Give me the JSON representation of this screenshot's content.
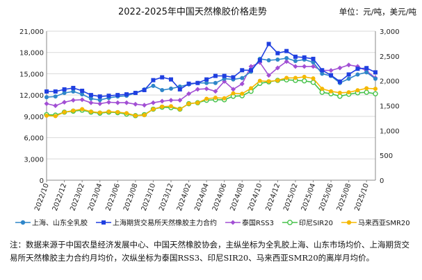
{
  "header": {
    "title": "2022-2025年中国天然橡胶价格走势",
    "unit": "单位：元/吨，美元/吨"
  },
  "legend": [
    {
      "label": "上海、山东全乳胶",
      "color": "#2e86c9",
      "marker": "circle"
    },
    {
      "label": "上海期货交易所天然橡胶主力合约",
      "color": "#1f3fe0",
      "marker": "square"
    },
    {
      "label": "泰国RSS3",
      "color": "#a24fd4",
      "marker": "diamond"
    },
    {
      "label": "印尼SIR20",
      "color": "#46c24a",
      "marker": "circle-open"
    },
    {
      "label": "马来西亚SMR20",
      "color": "#f5b800",
      "marker": "circle"
    }
  ],
  "note": "注：数据来源于中国农垦经济发展中心、中国天然橡胶协会，主纵坐标为全乳胶上海、山东市场均价、上海期货交易所天然橡胶主力合约月均价，次纵坐标为泰国RSS3、印尼SIR20、马来西亚SMR20的离岸月均价。",
  "chart_data": {
    "type": "line",
    "title": "2022-2025年中国天然橡胶价格走势",
    "x_tick_labels": [
      "2022/10",
      "2022/12",
      "2023/02",
      "2023/04",
      "2023/06",
      "2023/08",
      "2023/10",
      "2023/12",
      "2024/02",
      "2024/04",
      "2024/06",
      "2024/08",
      "2024/10",
      "2024/12",
      "2025/02",
      "2025/04",
      "2025/06",
      "2025/08",
      "2025/10"
    ],
    "y_left": {
      "ylim": [
        0,
        21000
      ],
      "ticks": [
        "0",
        "3,000",
        "6,000",
        "9,000",
        "12,000",
        "15,000",
        "18,000",
        "21,000"
      ],
      "ylabel": "元/吨"
    },
    "y_right": {
      "ylim": [
        0,
        3000
      ],
      "ticks": [
        "0",
        "500",
        "1,000",
        "1,500",
        "2,000",
        "2,500",
        "3,000"
      ],
      "ylabel": "美元/吨"
    },
    "series": [
      {
        "name": "上海、山东全乳胶",
        "axis": "left",
        "values": [
          11700,
          11800,
          12300,
          12500,
          12100,
          11500,
          11300,
          11600,
          11800,
          11900,
          12300,
          12800,
          13300,
          12700,
          12900,
          13200,
          13500,
          13700,
          13700,
          13700,
          14300,
          14200,
          14400,
          15300,
          17100,
          16900,
          17000,
          17200,
          16800,
          17000,
          16600,
          15000,
          14700,
          13700,
          14300,
          14900,
          15200,
          14300
        ]
      },
      {
        "name": "上海期货交易所天然橡胶主力合约",
        "axis": "left",
        "values": [
          12500,
          12500,
          12800,
          13000,
          12600,
          12000,
          11800,
          11900,
          12000,
          12100,
          12300,
          12700,
          14100,
          14500,
          14200,
          12800,
          13600,
          13700,
          14200,
          14700,
          14700,
          14500,
          15500,
          15500,
          16900,
          19200,
          17900,
          18200,
          17400,
          17300,
          17100,
          15500,
          14800,
          13900,
          14900,
          15700,
          15800,
          15200
        ]
      },
      {
        "name": "泰国RSS3",
        "axis": "right",
        "values": [
          1540,
          1500,
          1570,
          1610,
          1620,
          1560,
          1540,
          1570,
          1560,
          1560,
          1530,
          1510,
          1560,
          1590,
          1610,
          1610,
          1740,
          1830,
          1840,
          1790,
          1990,
          1830,
          1940,
          2290,
          2370,
          2110,
          2260,
          2390,
          2290,
          2290,
          2290,
          2210,
          2210,
          2260,
          2320,
          2290,
          2200,
          2060
        ]
      },
      {
        "name": "印尼SIR20",
        "axis": "right",
        "values": [
          1320,
          1310,
          1370,
          1390,
          1410,
          1370,
          1350,
          1370,
          1360,
          1330,
          1300,
          1320,
          1430,
          1470,
          1460,
          1430,
          1540,
          1560,
          1610,
          1620,
          1620,
          1690,
          1700,
          1790,
          1950,
          1980,
          2010,
          2020,
          2010,
          2000,
          1970,
          1770,
          1740,
          1690,
          1730,
          1760,
          1770,
          1740
        ]
      },
      {
        "name": "马来西亚SMR20",
        "axis": "right",
        "values": [
          1300,
          1290,
          1370,
          1400,
          1430,
          1380,
          1360,
          1380,
          1370,
          1350,
          1300,
          1310,
          1430,
          1480,
          1490,
          1430,
          1540,
          1560,
          1640,
          1660,
          1650,
          1750,
          1740,
          1850,
          2000,
          1990,
          2010,
          2060,
          2060,
          2080,
          2050,
          1840,
          1790,
          1760,
          1770,
          1810,
          1850,
          1840
        ]
      }
    ]
  }
}
